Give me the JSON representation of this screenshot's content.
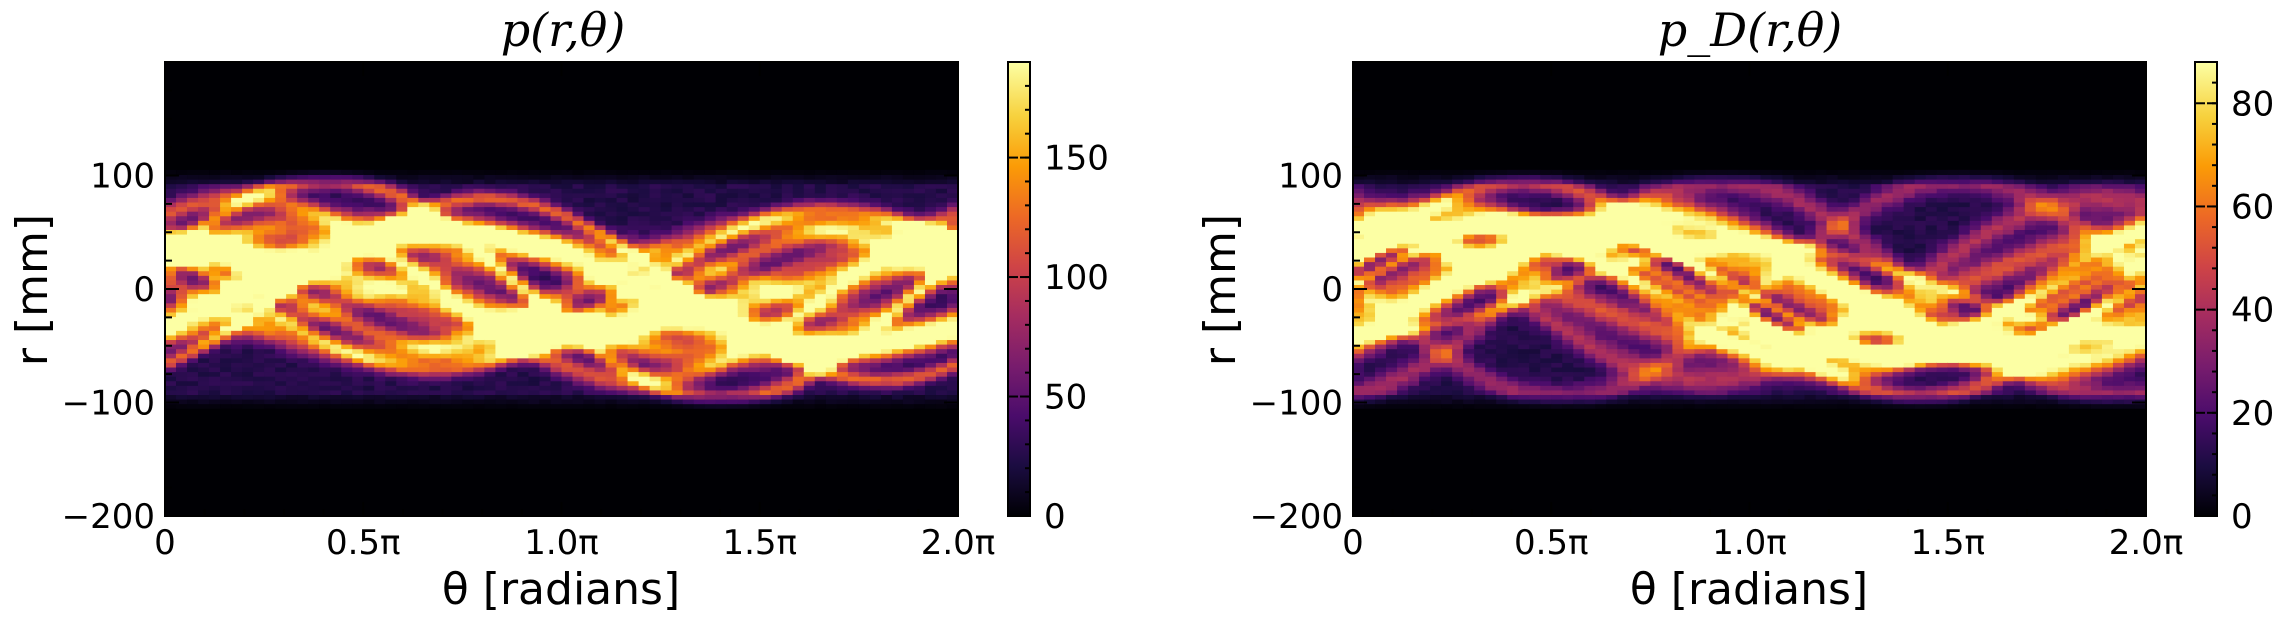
{
  "chart_data": [
    {
      "type": "heatmap",
      "title": "p(r,θ)",
      "xlabel": "θ [radians]",
      "ylabel": "r [mm]",
      "xlim": [
        0,
        6.2832
      ],
      "ylim": [
        -200,
        200
      ],
      "xticks": [
        0,
        1.5708,
        3.1416,
        4.7124,
        6.2832
      ],
      "xtick_labels": [
        "0",
        "0.5π",
        "1.0π",
        "1.5π",
        "2.0π"
      ],
      "yticks": [
        -200,
        -100,
        0,
        100
      ],
      "ytick_labels": [
        "−200",
        "−100",
        "0",
        "100"
      ],
      "colormap": "inferno",
      "colorbar": {
        "range": [
          0,
          190
        ],
        "ticks": [
          0,
          50,
          100,
          150
        ],
        "tick_labels": [
          "0",
          "50",
          "100",
          "150"
        ]
      },
      "band_radius_mm": 105,
      "peak_value": 190
    },
    {
      "type": "heatmap",
      "title": "p_D(r,θ)",
      "xlabel": "θ [radians]",
      "ylabel": "r [mm]",
      "xlim": [
        0,
        6.2832
      ],
      "ylim": [
        -200,
        200
      ],
      "xticks": [
        0,
        1.5708,
        3.1416,
        4.7124,
        6.2832
      ],
      "xtick_labels": [
        "0",
        "0.5π",
        "1.0π",
        "1.5π",
        "2.0π"
      ],
      "yticks": [
        -200,
        -100,
        0,
        100
      ],
      "ytick_labels": [
        "−200",
        "−100",
        "0",
        "100"
      ],
      "colormap": "inferno",
      "colorbar": {
        "range": [
          0,
          88
        ],
        "ticks": [
          0,
          20,
          40,
          60,
          80
        ],
        "tick_labels": [
          "0",
          "20",
          "40",
          "60",
          "80"
        ]
      },
      "band_radius_mm": 105,
      "peak_value": 88
    }
  ],
  "colors": {
    "inferno_stops": [
      "#000004",
      "#1b0c41",
      "#4a0c6b",
      "#781c6d",
      "#a52c60",
      "#cf4446",
      "#ed6925",
      "#fb9b06",
      "#f7d13d",
      "#fcffa4"
    ]
  }
}
